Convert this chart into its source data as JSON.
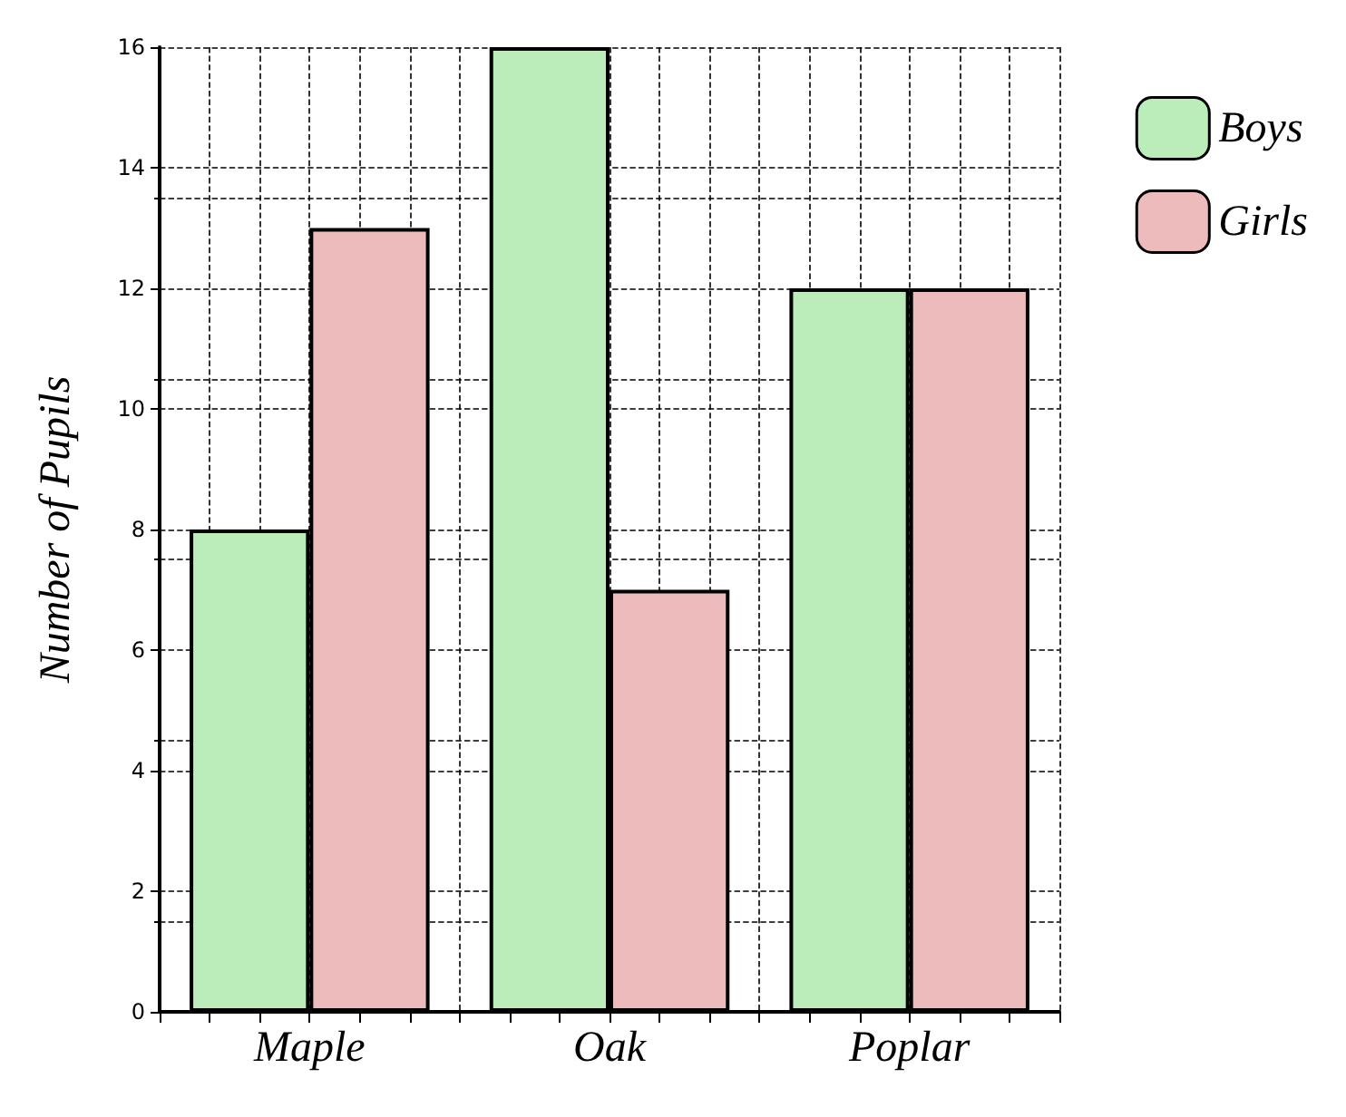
{
  "chart_data": {
    "type": "bar",
    "ylabel": "Number of Pupils",
    "categories": [
      "Maple",
      "Oak",
      "Poplar"
    ],
    "series": [
      {
        "name": "Boys",
        "color": "#bbedbb",
        "values": [
          8,
          16,
          12
        ]
      },
      {
        "name": "Girls",
        "color": "#edbbbb",
        "values": [
          13,
          7,
          12
        ]
      }
    ],
    "ylim": [
      0,
      16
    ],
    "yticks": [
      0,
      2,
      4,
      6,
      8,
      10,
      12,
      14,
      16
    ],
    "grid": true,
    "legend": "top right"
  }
}
